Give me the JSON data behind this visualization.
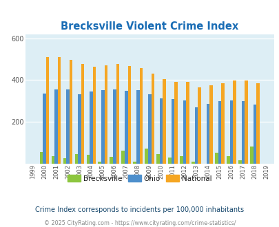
{
  "title": "Brecksville Violent Crime Index",
  "years": [
    1999,
    2000,
    2001,
    2002,
    2003,
    2004,
    2005,
    2006,
    2007,
    2008,
    2009,
    2010,
    2011,
    2012,
    2013,
    2014,
    2015,
    2016,
    2017,
    2018,
    2019
  ],
  "brecksville": [
    0,
    55,
    35,
    25,
    45,
    40,
    8,
    32,
    62,
    8,
    72,
    45,
    28,
    35,
    8,
    0,
    50,
    35,
    15,
    80,
    0
  ],
  "ohio": [
    0,
    335,
    355,
    355,
    330,
    345,
    352,
    356,
    348,
    352,
    332,
    313,
    308,
    302,
    270,
    285,
    297,
    302,
    300,
    283,
    0
  ],
  "national": [
    0,
    510,
    510,
    498,
    475,
    463,
    470,
    475,
    467,
    457,
    430,
    405,
    390,
    390,
    365,
    375,
    383,
    398,
    397,
    383,
    0
  ],
  "brecksville_color": "#8dc63f",
  "ohio_color": "#4d8fcc",
  "national_color": "#f5a623",
  "bg_color": "#ddeef5",
  "fig_bg_color": "#ffffff",
  "ylim": [
    0,
    620
  ],
  "yticks": [
    200,
    400,
    600
  ],
  "subtitle": "Crime Index corresponds to incidents per 100,000 inhabitants",
  "footer": "© 2025 CityRating.com - https://www.cityrating.com/crime-statistics/",
  "title_color": "#1a6db5",
  "subtitle_color": "#1a4a6e",
  "footer_color": "#888888"
}
